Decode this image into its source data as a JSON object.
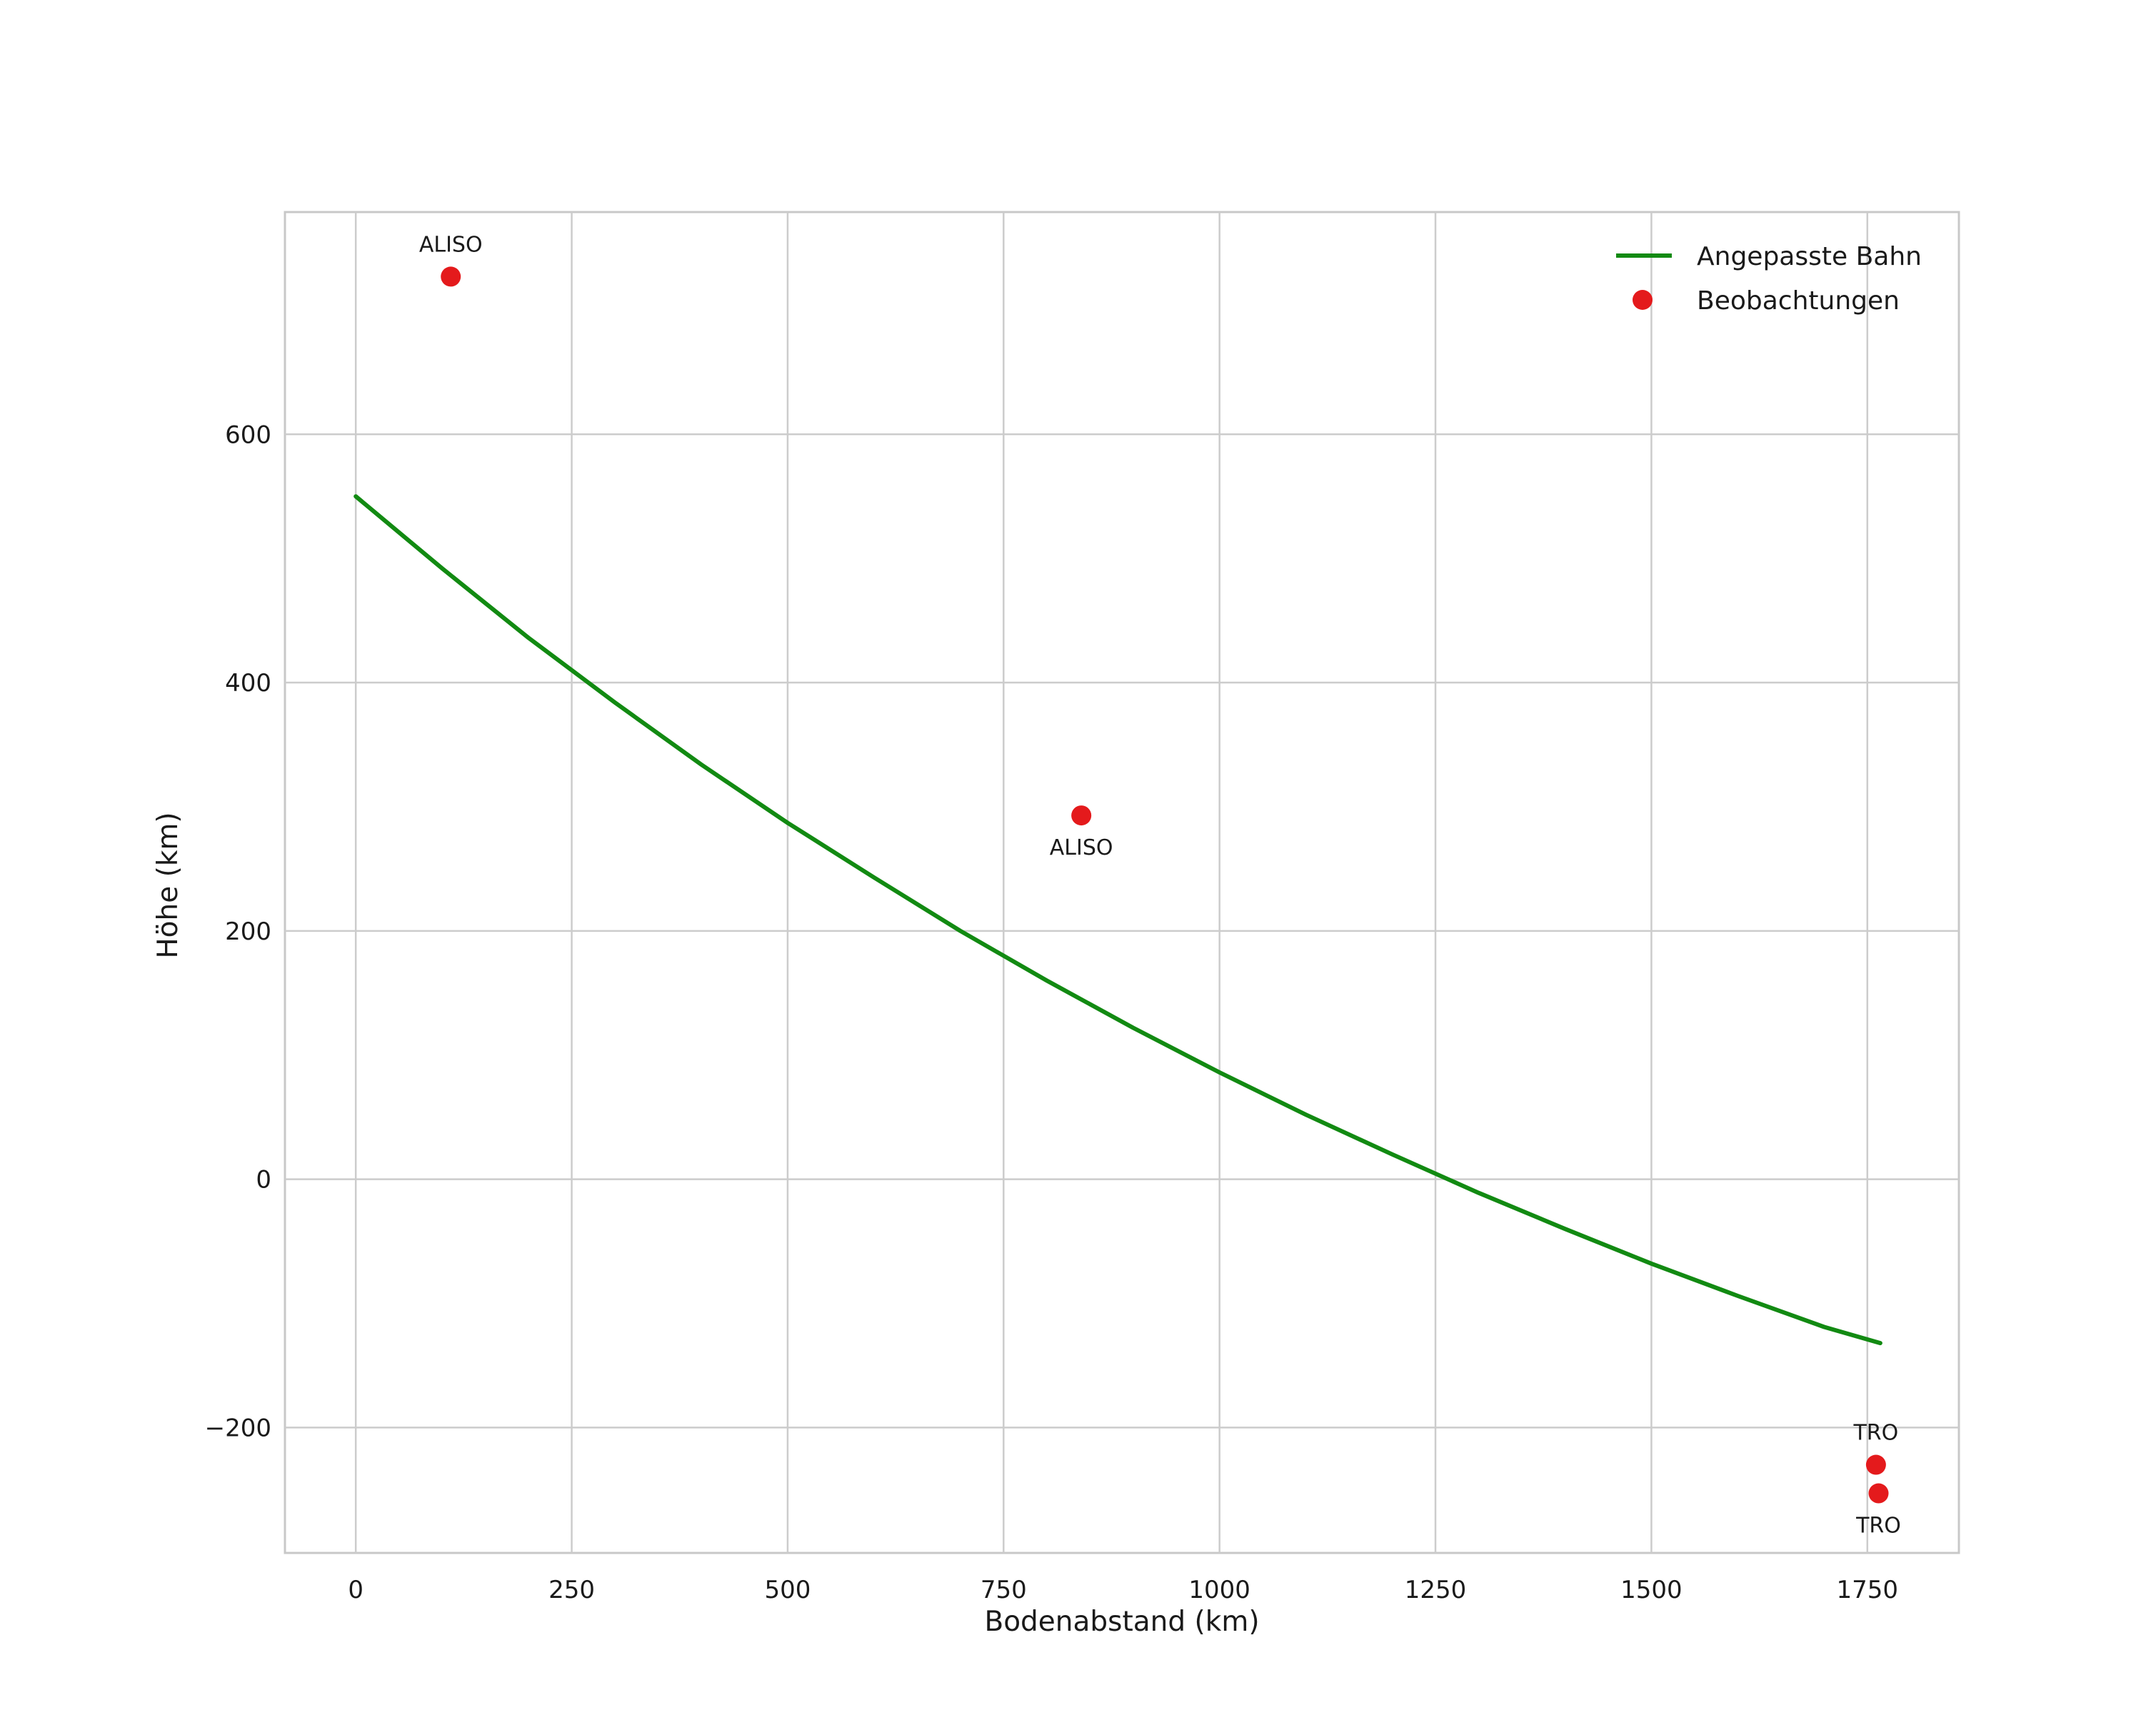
{
  "figure": {
    "background": "#ffffff"
  },
  "chart_data": {
    "type": "scatter",
    "title": "",
    "xlabel": "Bodenabstand (km)",
    "ylabel": "Höhe (km)",
    "xlim": [
      -82,
      1856
    ],
    "ylim": [
      -301,
      779
    ],
    "xticks": [
      0,
      250,
      500,
      750,
      1000,
      1250,
      1500,
      1750
    ],
    "yticks": [
      -200,
      0,
      200,
      400,
      600
    ],
    "grid": true,
    "grid_color": "#cccccc",
    "spine_color": "#c8c8c8",
    "legend": {
      "position": "upper right",
      "frame": false,
      "entries": [
        {
          "label": "Angepasste Bahn",
          "type": "line",
          "color": "#128a12"
        },
        {
          "label": "Beobachtungen",
          "type": "marker",
          "color": "#e41a1c"
        }
      ]
    },
    "series": [
      {
        "name": "Angepasste Bahn",
        "type": "line",
        "color": "#128a12",
        "line_width": 6,
        "points": [
          [
            0,
            550
          ],
          [
            100,
            492
          ],
          [
            200,
            436
          ],
          [
            300,
            384
          ],
          [
            400,
            334
          ],
          [
            500,
            287
          ],
          [
            600,
            243
          ],
          [
            700,
            200
          ],
          [
            800,
            160
          ],
          [
            900,
            122
          ],
          [
            1000,
            86
          ],
          [
            1100,
            52
          ],
          [
            1200,
            20
          ],
          [
            1300,
            -11
          ],
          [
            1400,
            -40
          ],
          [
            1500,
            -68
          ],
          [
            1600,
            -94
          ],
          [
            1700,
            -119
          ],
          [
            1765,
            -132
          ]
        ]
      },
      {
        "name": "Beobachtungen",
        "type": "scatter",
        "color": "#e41a1c",
        "marker_radius": 14,
        "points": [
          {
            "x": 110,
            "y": 727,
            "label": "ALISO",
            "label_position": "above"
          },
          {
            "x": 840,
            "y": 293,
            "label": "ALISO",
            "label_position": "below"
          },
          {
            "x": 1760,
            "y": -230,
            "label": "TRO",
            "label_position": "above"
          },
          {
            "x": 1763,
            "y": -253,
            "label": "TRO",
            "label_position": "below"
          }
        ]
      }
    ]
  }
}
